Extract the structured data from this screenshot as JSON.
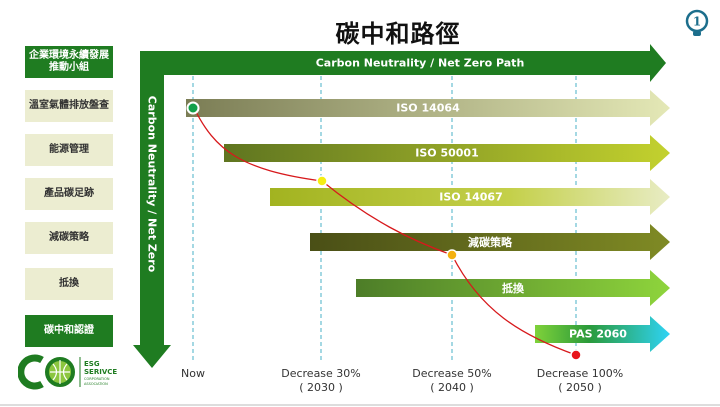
{
  "title": "碳中和路徑",
  "sidebar": {
    "items": [
      {
        "label": "企業環境永續發展\n推動小組",
        "style": "dark"
      },
      {
        "label": "溫室氣體排放盤查",
        "style": "light"
      },
      {
        "label": "能源管理",
        "style": "light"
      },
      {
        "label": "產品碳足跡",
        "style": "light"
      },
      {
        "label": "減碳策略",
        "style": "light"
      },
      {
        "label": "抵換",
        "style": "light"
      },
      {
        "label": "碳中和認證",
        "style": "dark"
      }
    ]
  },
  "axis": {
    "horizontal_label": "Carbon Neutrality / Net Zero Path",
    "vertical_label": "Carbon Neutrality / Net Zero"
  },
  "bars": [
    {
      "label": "ISO 14064"
    },
    {
      "label": "ISO 50001"
    },
    {
      "label": "ISO 14067"
    },
    {
      "label": "減碳策略"
    },
    {
      "label": "抵換"
    },
    {
      "label": "PAS 2060"
    }
  ],
  "milestones": [
    {
      "label": "Now",
      "year": "",
      "color": "#12a04a"
    },
    {
      "label": "Decrease 30%",
      "year": "( 2030 )",
      "color": "#f5ee12"
    },
    {
      "label": "Decrease 50%",
      "year": "( 2040 )",
      "color": "#f4b10e"
    },
    {
      "label": "Decrease 100%",
      "year": "( 2050 )",
      "color": "#e8141a"
    }
  ],
  "logo": {
    "text": "ESG SERIVCE CORPORATION ASSOCIATION"
  },
  "page_badge": "1",
  "colors": {
    "dark_green": "#1f7c21",
    "beige": "#ecedd1",
    "dashed": "#8ecfdc",
    "curve": "#d7191c"
  }
}
